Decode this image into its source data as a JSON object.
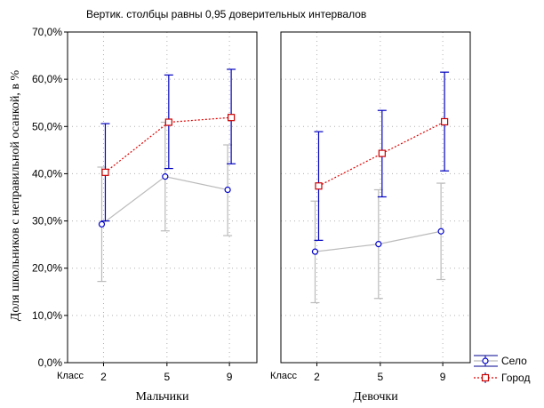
{
  "chart_data": {
    "type": "line",
    "title": "Вертик. столбцы равны 0,95 доверительных интервалов",
    "ylabel": "Доля школьников с неправильной осанкой, в %",
    "ylim": [
      0,
      70
    ],
    "yticks": [
      "0,0%",
      "10,0%",
      "20,0%",
      "30,0%",
      "40,0%",
      "50,0%",
      "60,0%",
      "70,0%"
    ],
    "x_axis_caption": "Класс",
    "categories": [
      "2",
      "5",
      "9"
    ],
    "grid": true,
    "legend_position": "bottom-right",
    "panels": [
      {
        "label": "Мальчики",
        "series": [
          {
            "name": "Село",
            "values": [
              29.3,
              39.4,
              36.6
            ],
            "ci_low": [
              17.2,
              27.9,
              26.9
            ],
            "ci_high": [
              41.4,
              50.9,
              46.1
            ]
          },
          {
            "name": "Город",
            "values": [
              40.3,
              50.9,
              51.9
            ],
            "ci_low": [
              30.0,
              41.1,
              42.1
            ],
            "ci_high": [
              50.6,
              60.9,
              62.1
            ]
          }
        ]
      },
      {
        "label": "Девочки",
        "series": [
          {
            "name": "Село",
            "values": [
              23.5,
              25.1,
              27.8
            ],
            "ci_low": [
              12.7,
              13.6,
              17.6
            ],
            "ci_high": [
              34.2,
              36.6,
              38.0
            ]
          },
          {
            "name": "Город",
            "values": [
              37.4,
              44.3,
              51.0
            ],
            "ci_low": [
              25.9,
              35.1,
              40.6
            ],
            "ci_high": [
              48.9,
              53.4,
              61.5
            ]
          }
        ]
      }
    ],
    "series_styles": [
      {
        "name": "Село",
        "line_color": "#bbbbbb",
        "marker_color": "#0000cc",
        "error_color": "#bbbbbb",
        "marker": "circle",
        "dashed": false
      },
      {
        "name": "Город",
        "line_color": "#e00000",
        "marker_color": "#cc0000",
        "error_color": "#0000c0",
        "marker": "square",
        "dashed": true
      }
    ]
  }
}
